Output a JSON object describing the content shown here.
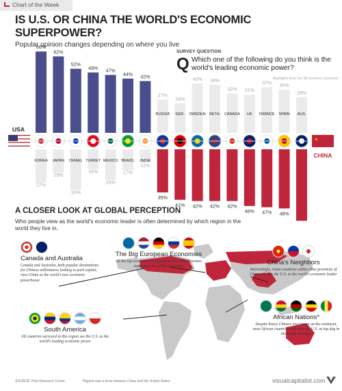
{
  "header": {
    "tag": "Chart of the Week",
    "title": "IS U.S. OR CHINA THE WORLD'S ECONOMIC SUPERPOWER?",
    "subtitle": "Popular opinion changes depending on where you live"
  },
  "survey": {
    "label": "SURVEY QUESTION",
    "q": "Q",
    "question": "Which one of the following do you think is the world's leading economic power?",
    "note": "Highlights from the 38 countries surveyed"
  },
  "colors": {
    "usa_bar": "#4a4e8c",
    "china_bar": "#c0263b",
    "light_bar": "#ebebeb",
    "map_land": "#c9c9c9",
    "map_highlight": "#c0263b"
  },
  "chart_data": {
    "type": "bar",
    "usa_label": "USA",
    "china_label": "CHINA",
    "categories": [
      "KOREA",
      "JAPAN",
      "ISRAEL",
      "TURKEY",
      "MEXICO",
      "BRAZIL",
      "INDIA",
      "RUSSIA",
      "GER.",
      "SWEDEN",
      "NETH.",
      "CANADA",
      "UK",
      "FRANCE",
      "SPAIN",
      "AUS."
    ],
    "series": [
      {
        "name": "USA",
        "values": [
          66,
          62,
          52,
          49,
          47,
          44,
          42,
          27,
          24,
          40,
          39,
          32,
          31,
          37,
          35,
          29
        ]
      },
      {
        "name": "CHINA",
        "values": [
          27,
          19,
          33,
          16,
          25,
          17,
          11,
          35,
          41,
          42,
          42,
          42,
          46,
          47,
          48,
          58
        ]
      }
    ],
    "leader": [
      "USA",
      "USA",
      "USA",
      "USA",
      "USA",
      "USA",
      "USA",
      "CHINA",
      "CHINA",
      "CHINA",
      "CHINA",
      "CHINA",
      "CHINA",
      "CHINA",
      "CHINA",
      "CHINA"
    ],
    "value_suffix": "%"
  },
  "flags": [
    "korea-flag",
    "japan-flag",
    "israel-flag",
    "turkey-flag",
    "mexico-flag",
    "brazil-flag",
    "india-flag",
    "russia-flag",
    "germany-flag",
    "sweden-flag",
    "netherlands-flag",
    "canada-flag",
    "uk-flag",
    "france-flag",
    "spain-flag",
    "australia-flag"
  ],
  "section": {
    "title": "A CLOSER LOOK AT GLOBAL PERCEPTION",
    "subtitle": "Who people view as the world's economic leader is often determined by which region in the world they live in."
  },
  "regions": [
    {
      "id": "canada-australia",
      "title": "Canada and Australia",
      "desc": "Canada and Australia, both popular destinations for Chinese millionaires looking to park capital, view China as the world's new economic powerhouse",
      "flags": [
        "#d52b1e",
        "#012169"
      ]
    },
    {
      "id": "european",
      "title": "The Big European Economies",
      "desc": "All the top economies in Europe believe that economic supremacy has shifted to China",
      "flags": [
        "#006aa7",
        "#21468b",
        "#000000",
        "#0039a6",
        "#c60b1e"
      ]
    },
    {
      "id": "china-neighbors",
      "title": "China's Neighbors",
      "desc": "Interestingly, Asian countries within close proximity of China all view the U.S. as the world's economic leader",
      "flags": [
        "#da251d",
        "#0038a8",
        "#ffffff"
      ]
    },
    {
      "id": "africa",
      "title": "African Nations*",
      "desc": "Despite heavy Chinese investment on the continent, most African countries still view the U.S. as top dog in the world economy",
      "flags": [
        "#007a4d",
        "#006b3f",
        "#006b3f",
        "#ce1126",
        "#00853f"
      ]
    },
    {
      "id": "south-america",
      "title": "South America",
      "desc": "All countries surveyed in this region see the U.S. as the world's leading economic power",
      "flags": [
        "#009c3b",
        "#fcd116",
        "#ffcc00",
        "#74acdf",
        "#0039a6"
      ]
    }
  ],
  "footer": {
    "source": "SOURCE: Pew Research Center",
    "footnote": "*Nigeria was a draw between China and the United States",
    "site": "visualcapitalist.com"
  }
}
